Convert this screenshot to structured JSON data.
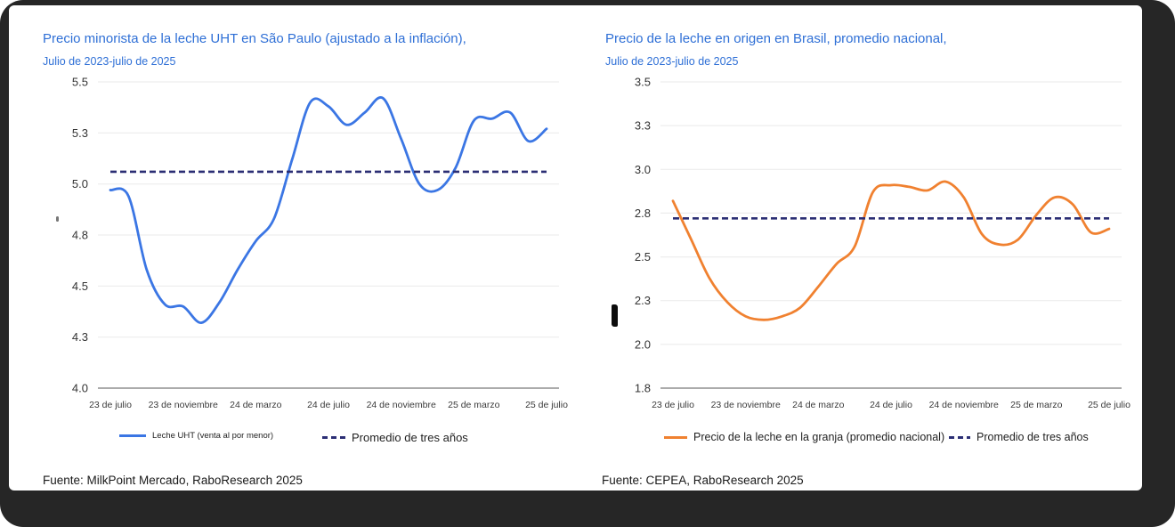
{
  "window": {
    "frame_color": "#262626",
    "panel_color": "#ffffff",
    "accent_blue": "#2E6FD6"
  },
  "chart_data": [
    {
      "type": "line",
      "title": "Precio minorista de la leche UHT en São Paulo (ajustado a la inflación),",
      "subtitle": "Julio de 2023-julio de 2025",
      "source": "Fuente: MilkPoint Mercado, RaboResearch 2025",
      "grid": true,
      "legend_position": "bottom",
      "ylim": [
        4.0,
        5.5
      ],
      "y_ticks": [
        {
          "v": 4.0,
          "label": "4.0"
        },
        {
          "v": 4.25,
          "label": "4.3"
        },
        {
          "v": 4.5,
          "label": "4.5"
        },
        {
          "v": 4.75,
          "label": "4.8"
        },
        {
          "v": 5.0,
          "label": "5.0"
        },
        {
          "v": 5.25,
          "label": "5.3"
        },
        {
          "v": 5.5,
          "label": "5.5"
        }
      ],
      "x_tick_labels": [
        "23 de julio",
        "23 de noviembre",
        "24 de marzo",
        "24 de julio",
        "24 de noviembre",
        "25 de marzo",
        "25 de julio"
      ],
      "x_tick_months": [
        0,
        4,
        8,
        12,
        16,
        20,
        24
      ],
      "x_unit": "months Jul 2023 - Jul 2025",
      "series": [
        {
          "name": "Leche UHT (venta al por menor)",
          "color": "#3B76E4",
          "style": "solid",
          "values": [
            4.97,
            4.94,
            4.58,
            4.41,
            4.4,
            4.32,
            4.42,
            4.58,
            4.72,
            4.83,
            5.12,
            5.4,
            5.38,
            5.29,
            5.35,
            5.42,
            5.22,
            5.0,
            4.97,
            5.08,
            5.31,
            5.32,
            5.35,
            5.21,
            5.27
          ]
        },
        {
          "name": "Promedio de tres años",
          "color": "#2B2E74",
          "style": "dashed",
          "constant": 5.06
        }
      ]
    },
    {
      "type": "line",
      "title": "Precio de la leche en origen en Brasil, promedio nacional,",
      "subtitle": "Julio de 2023-julio de 2025",
      "source": "Fuente: CEPEA, RaboResearch 2025",
      "grid": true,
      "legend_position": "bottom",
      "ylim": [
        1.75,
        3.5
      ],
      "y_ticks": [
        {
          "v": 1.75,
          "label": "1.8"
        },
        {
          "v": 2.0,
          "label": "2.0"
        },
        {
          "v": 2.25,
          "label": "2.3"
        },
        {
          "v": 2.5,
          "label": "2.5"
        },
        {
          "v": 2.75,
          "label": "2.8"
        },
        {
          "v": 3.0,
          "label": "3.0"
        },
        {
          "v": 3.25,
          "label": "3.3"
        },
        {
          "v": 3.5,
          "label": "3.5"
        }
      ],
      "x_tick_labels": [
        "23 de julio",
        "23 de noviembre",
        "24 de marzo",
        "24 de julio",
        "24 de noviembre",
        "25 de marzo",
        "25 de julio"
      ],
      "x_tick_months": [
        0,
        4,
        8,
        12,
        16,
        20,
        24
      ],
      "x_unit": "months Jul 2023 - Jul 2025",
      "series": [
        {
          "name": "Precio de la leche en la granja (promedio nacional)",
          "color": "#F08130",
          "style": "solid",
          "values": [
            2.82,
            2.6,
            2.38,
            2.24,
            2.16,
            2.14,
            2.16,
            2.21,
            2.33,
            2.46,
            2.56,
            2.87,
            2.91,
            2.9,
            2.88,
            2.93,
            2.84,
            2.63,
            2.57,
            2.6,
            2.74,
            2.84,
            2.8,
            2.64,
            2.66
          ]
        },
        {
          "name": "Promedio de tres años",
          "color": "#2B2E74",
          "style": "dashed",
          "constant": 2.72
        }
      ]
    }
  ]
}
